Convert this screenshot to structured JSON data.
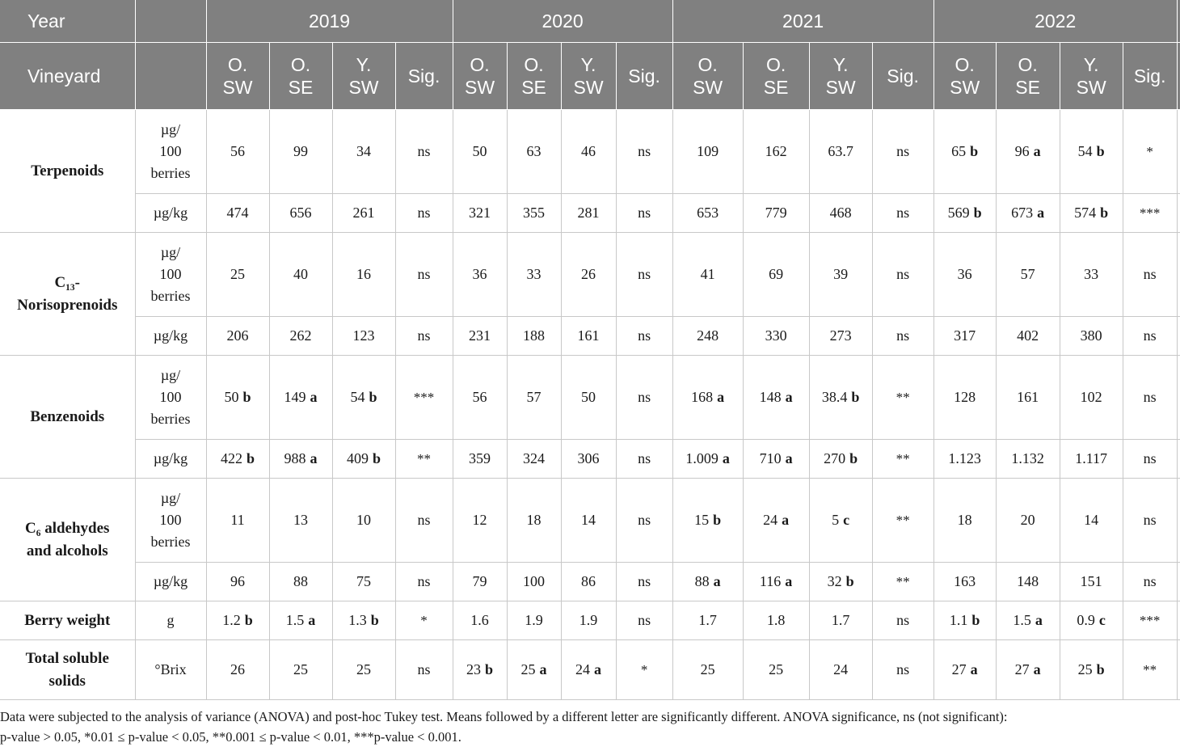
{
  "header": {
    "year_label": "Year",
    "vineyard_label": "Vineyard",
    "years": [
      "2019",
      "2020",
      "2021",
      "2022"
    ],
    "cols": [
      "O.\nSW",
      "O.\nSE",
      "Y.\nSW",
      "Sig."
    ]
  },
  "rows": [
    {
      "compound": "Terpenoids",
      "unit": "µg/\n100\nberries",
      "vals": [
        [
          "56",
          ""
        ],
        [
          "99",
          ""
        ],
        [
          "34",
          ""
        ],
        [
          "ns",
          ""
        ],
        [
          "50",
          ""
        ],
        [
          "63",
          ""
        ],
        [
          "46",
          ""
        ],
        [
          "ns",
          ""
        ],
        [
          "109",
          ""
        ],
        [
          "162",
          ""
        ],
        [
          "63.7",
          ""
        ],
        [
          "ns",
          ""
        ],
        [
          "65",
          "b"
        ],
        [
          "96",
          "a"
        ],
        [
          "54",
          "b"
        ],
        [
          "*",
          ""
        ]
      ]
    },
    {
      "compound": "",
      "unit": "µg/kg",
      "vals": [
        [
          "474",
          ""
        ],
        [
          "656",
          ""
        ],
        [
          "261",
          ""
        ],
        [
          "ns",
          ""
        ],
        [
          "321",
          ""
        ],
        [
          "355",
          ""
        ],
        [
          "281",
          ""
        ],
        [
          "ns",
          ""
        ],
        [
          "653",
          ""
        ],
        [
          "779",
          ""
        ],
        [
          "468",
          ""
        ],
        [
          "ns",
          ""
        ],
        [
          "569",
          "b"
        ],
        [
          "673",
          "a"
        ],
        [
          "574",
          "b"
        ],
        [
          "***",
          ""
        ]
      ]
    },
    {
      "compound": "C₁₃-\nNorisoprenoids",
      "unit": "µg/\n100\nberries",
      "vals": [
        [
          "25",
          ""
        ],
        [
          "40",
          ""
        ],
        [
          "16",
          ""
        ],
        [
          "ns",
          ""
        ],
        [
          "36",
          ""
        ],
        [
          "33",
          ""
        ],
        [
          "26",
          ""
        ],
        [
          "ns",
          ""
        ],
        [
          "41",
          ""
        ],
        [
          "69",
          ""
        ],
        [
          "39",
          ""
        ],
        [
          "ns",
          ""
        ],
        [
          "36",
          ""
        ],
        [
          "57",
          ""
        ],
        [
          "33",
          ""
        ],
        [
          "ns",
          ""
        ]
      ]
    },
    {
      "compound": "",
      "unit": "µg/kg",
      "vals": [
        [
          "206",
          ""
        ],
        [
          "262",
          ""
        ],
        [
          "123",
          ""
        ],
        [
          "ns",
          ""
        ],
        [
          "231",
          ""
        ],
        [
          "188",
          ""
        ],
        [
          "161",
          ""
        ],
        [
          "ns",
          ""
        ],
        [
          "248",
          ""
        ],
        [
          "330",
          ""
        ],
        [
          "273",
          ""
        ],
        [
          "ns",
          ""
        ],
        [
          "317",
          ""
        ],
        [
          "402",
          ""
        ],
        [
          "380",
          ""
        ],
        [
          "ns",
          ""
        ]
      ]
    },
    {
      "compound": "Benzenoids",
      "unit": "µg/\n100\nberries",
      "vals": [
        [
          "50",
          "b"
        ],
        [
          "149",
          "a"
        ],
        [
          "54",
          "b"
        ],
        [
          "***",
          ""
        ],
        [
          "56",
          ""
        ],
        [
          "57",
          ""
        ],
        [
          "50",
          ""
        ],
        [
          "ns",
          ""
        ],
        [
          "168",
          "a"
        ],
        [
          "148",
          "a"
        ],
        [
          "38.4",
          "b"
        ],
        [
          "**",
          ""
        ],
        [
          "128",
          ""
        ],
        [
          "161",
          ""
        ],
        [
          "102",
          ""
        ],
        [
          "ns",
          ""
        ]
      ]
    },
    {
      "compound": "",
      "unit": "µg/kg",
      "vals": [
        [
          "422",
          "b"
        ],
        [
          "988",
          "a"
        ],
        [
          "409",
          "b"
        ],
        [
          "**",
          ""
        ],
        [
          "359",
          ""
        ],
        [
          "324",
          ""
        ],
        [
          "306",
          ""
        ],
        [
          "ns",
          ""
        ],
        [
          "1.009",
          "a"
        ],
        [
          "710",
          "a"
        ],
        [
          "270",
          "b"
        ],
        [
          "**",
          ""
        ],
        [
          "1.123",
          ""
        ],
        [
          "1.132",
          ""
        ],
        [
          "1.117",
          ""
        ],
        [
          "ns",
          ""
        ]
      ]
    },
    {
      "compound": "C₆ aldehydes\nand alcohols",
      "unit": "µg/\n100\nberries",
      "vals": [
        [
          "11",
          ""
        ],
        [
          "13",
          ""
        ],
        [
          "10",
          ""
        ],
        [
          "ns",
          ""
        ],
        [
          "12",
          ""
        ],
        [
          "18",
          ""
        ],
        [
          "14",
          ""
        ],
        [
          "ns",
          ""
        ],
        [
          "15",
          "b"
        ],
        [
          "24",
          "a"
        ],
        [
          "5",
          "c"
        ],
        [
          "**",
          ""
        ],
        [
          "18",
          ""
        ],
        [
          "20",
          ""
        ],
        [
          "14",
          ""
        ],
        [
          "ns",
          ""
        ]
      ]
    },
    {
      "compound": "",
      "unit": "µg/kg",
      "vals": [
        [
          "96",
          ""
        ],
        [
          "88",
          ""
        ],
        [
          "75",
          ""
        ],
        [
          "ns",
          ""
        ],
        [
          "79",
          ""
        ],
        [
          "100",
          ""
        ],
        [
          "86",
          ""
        ],
        [
          "ns",
          ""
        ],
        [
          "88",
          "a"
        ],
        [
          "116",
          "a"
        ],
        [
          "32",
          "b"
        ],
        [
          "**",
          ""
        ],
        [
          "163",
          ""
        ],
        [
          "148",
          ""
        ],
        [
          "151",
          ""
        ],
        [
          "ns",
          ""
        ]
      ]
    },
    {
      "compound": "Berry weight",
      "unit": "g",
      "vals": [
        [
          "1.2",
          "b"
        ],
        [
          "1.5",
          "a"
        ],
        [
          "1.3",
          "b"
        ],
        [
          "*",
          ""
        ],
        [
          "1.6",
          ""
        ],
        [
          "1.9",
          ""
        ],
        [
          "1.9",
          ""
        ],
        [
          "ns",
          ""
        ],
        [
          "1.7",
          ""
        ],
        [
          "1.8",
          ""
        ],
        [
          "1.7",
          ""
        ],
        [
          "ns",
          ""
        ],
        [
          "1.1",
          "b"
        ],
        [
          "1.5",
          "a"
        ],
        [
          "0.9",
          "c"
        ],
        [
          "***",
          ""
        ]
      ]
    },
    {
      "compound": "Total soluble\nsolids",
      "unit": "°Brix",
      "vals": [
        [
          "26",
          ""
        ],
        [
          "25",
          ""
        ],
        [
          "25",
          ""
        ],
        [
          "ns",
          ""
        ],
        [
          "23",
          "b"
        ],
        [
          "25",
          "a"
        ],
        [
          "24",
          "a"
        ],
        [
          "*",
          ""
        ],
        [
          "25",
          ""
        ],
        [
          "25",
          ""
        ],
        [
          "24",
          ""
        ],
        [
          "ns",
          ""
        ],
        [
          "27",
          "a"
        ],
        [
          "27",
          "a"
        ],
        [
          "25",
          "b"
        ],
        [
          "**",
          ""
        ]
      ]
    }
  ],
  "footnote": {
    "line1": "Data were subjected to the analysis of variance (ANOVA) and post-hoc Tukey test. Means followed by a different letter are significantly different. ANOVA significance, ns (not significant):",
    "line2": "p-value > 0.05, *0.01 ≤ p-value < 0.05, **0.001 ≤ p-value < 0.01, ***p-value < 0.001."
  }
}
